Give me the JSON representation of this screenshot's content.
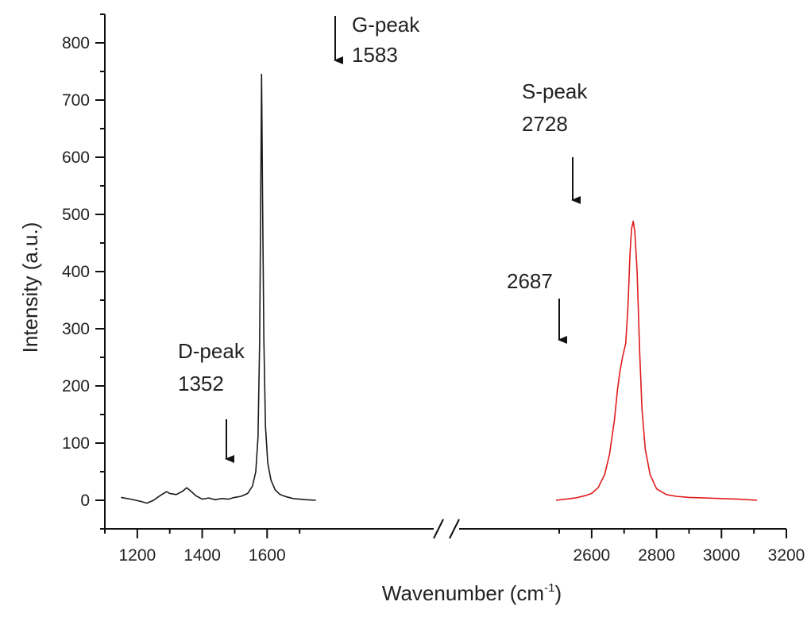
{
  "chart_data": {
    "type": "line",
    "title": "",
    "xlabel": "Wavenumber (cm",
    "xlabel_sup": "-1",
    "xlabel_close": ")",
    "ylabel": "Intensity (a.u.)",
    "xlim": [
      1100,
      3200
    ],
    "ylim": [
      -50,
      850
    ],
    "axis_break": [
      1750,
      2480
    ],
    "x_ticks": [
      "1200",
      "1400",
      "1600",
      "2600",
      "2800",
      "3000",
      "3200"
    ],
    "y_ticks": [
      "0",
      "100",
      "200",
      "300",
      "400",
      "500",
      "600",
      "700",
      "800"
    ],
    "grid": false,
    "legend": "none",
    "series": [
      {
        "color": "#1a1a1a",
        "x": [
          1150,
          1180,
          1210,
          1230,
          1250,
          1270,
          1290,
          1300,
          1320,
          1340,
          1352,
          1365,
          1380,
          1400,
          1420,
          1440,
          1460,
          1480,
          1500,
          1520,
          1540,
          1555,
          1565,
          1572,
          1577,
          1580,
          1583,
          1586,
          1590,
          1595,
          1602,
          1612,
          1625,
          1640,
          1660,
          1680,
          1700,
          1720,
          1750
        ],
        "y": [
          5,
          2,
          -2,
          -5,
          0,
          8,
          15,
          12,
          10,
          16,
          22,
          16,
          8,
          2,
          4,
          1,
          3,
          2,
          5,
          7,
          12,
          25,
          50,
          110,
          280,
          500,
          745,
          520,
          280,
          130,
          65,
          35,
          18,
          10,
          6,
          3,
          2,
          1,
          0
        ]
      },
      {
        "color": "#e01b1b",
        "x": [
          2490,
          2520,
          2550,
          2580,
          2600,
          2620,
          2640,
          2655,
          2670,
          2680,
          2687,
          2695,
          2705,
          2712,
          2718,
          2723,
          2728,
          2733,
          2740,
          2748,
          2755,
          2765,
          2780,
          2800,
          2830,
          2860,
          2900,
          2950,
          3000,
          3050,
          3110
        ],
        "y": [
          0,
          2,
          4,
          8,
          12,
          22,
          45,
          80,
          140,
          195,
          225,
          250,
          275,
          340,
          430,
          475,
          488,
          470,
          400,
          260,
          160,
          90,
          45,
          20,
          10,
          7,
          5,
          4,
          3,
          2,
          0
        ]
      }
    ],
    "annotations": [
      {
        "label": "G-peak",
        "value": "1583"
      },
      {
        "label": "S-peak",
        "value": "2728"
      },
      {
        "label": "",
        "value": "2687"
      },
      {
        "label": "D-peak",
        "value": "1352"
      }
    ]
  }
}
